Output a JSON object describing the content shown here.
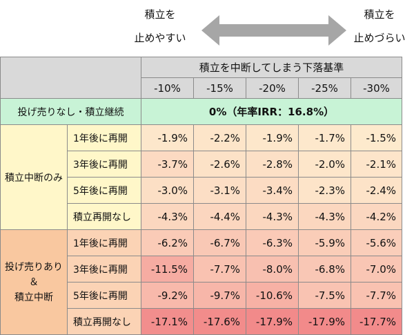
{
  "caption_left": {
    "line1": "積立を",
    "line2": "止めやすい"
  },
  "caption_right": {
    "line1": "積立を",
    "line2": "止めづらい"
  },
  "header": {
    "group": "積立を中断してしまう下落基準",
    "columns": [
      "-10%",
      "-15%",
      "-20%",
      "-25%",
      "-30%"
    ]
  },
  "baseline": {
    "label": "投げ売りなし・積立継続",
    "value": "0%（年率IRR：16.8%）"
  },
  "group_a": {
    "label": "積立中断のみ",
    "rows": [
      {
        "label": "1年後に再開",
        "values": [
          "-1.9%",
          "-2.2%",
          "-1.9%",
          "-1.7%",
          "-1.5%"
        ]
      },
      {
        "label": "3年後に再開",
        "values": [
          "-3.7%",
          "-2.6%",
          "-2.8%",
          "-2.0%",
          "-2.1%"
        ]
      },
      {
        "label": "5年後に再開",
        "values": [
          "-3.0%",
          "-3.1%",
          "-3.4%",
          "-2.3%",
          "-2.4%"
        ]
      },
      {
        "label": "積立再開なし",
        "values": [
          "-4.3%",
          "-4.4%",
          "-4.3%",
          "-4.3%",
          "-4.2%"
        ]
      }
    ]
  },
  "group_b": {
    "label_line1": "投げ売りあり",
    "label_line2": "＆",
    "label_line3": "積立中断",
    "rows": [
      {
        "label": "1年後に再開",
        "values": [
          "-6.2%",
          "-6.7%",
          "-6.3%",
          "-5.9%",
          "-5.6%"
        ]
      },
      {
        "label": "3年後に再開",
        "values": [
          "-11.5%",
          "-7.7%",
          "-8.0%",
          "-6.8%",
          "-7.0%"
        ]
      },
      {
        "label": "5年後に再開",
        "values": [
          "-9.2%",
          "-9.7%",
          "-10.6%",
          "-7.5%",
          "-7.7%"
        ]
      },
      {
        "label": "積立再開なし",
        "values": [
          "-17.1%",
          "-17.6%",
          "-17.9%",
          "-17.9%",
          "-17.7%"
        ]
      }
    ]
  },
  "colors": {
    "header": "#d9d9d9",
    "baseline": "#c8f3d6",
    "group_a": "#fff7c9",
    "group_b": "#f9c8a0",
    "cell_low": "#fff7d6",
    "cell_high": "#f28a8a"
  }
}
